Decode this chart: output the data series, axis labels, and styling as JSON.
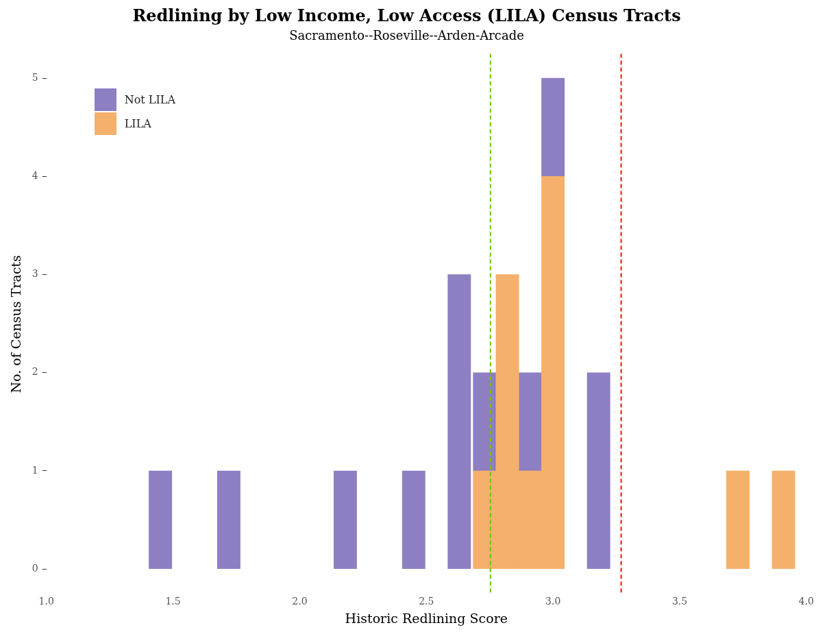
{
  "chart_data": {
    "type": "bar",
    "title": "Redlining by Low Income, Low Access (LILA) Census Tracts",
    "subtitle": "Sacramento--Roseville--Arden-Arcade",
    "xlabel": "Historic Redlining Score",
    "ylabel": "No. of Census Tracts",
    "x": [
      1.45,
      1.72,
      2.18,
      2.45,
      2.63,
      2.73,
      2.82,
      2.91,
      3.0,
      3.18,
      3.73,
      3.91
    ],
    "stacked": true,
    "series": [
      {
        "name": "LILA",
        "color": "#f5b06b",
        "values": [
          0,
          0,
          0,
          0,
          0,
          1,
          3,
          1,
          4,
          0,
          1,
          1
        ]
      },
      {
        "name": "Not LILA",
        "color": "#8e7fc2",
        "values": [
          1,
          1,
          1,
          1,
          3,
          1,
          0,
          1,
          1,
          2,
          0,
          0
        ]
      }
    ],
    "xlim": [
      1.0,
      4.0
    ],
    "xticks": [
      {
        "value": 1,
        "label": "1.0"
      },
      {
        "value": 1.5,
        "label": "1.5"
      },
      {
        "value": 2,
        "label": "2.0"
      },
      {
        "value": 2.5,
        "label": "2.5"
      },
      {
        "value": 3,
        "label": "3.0"
      },
      {
        "value": 3.5,
        "label": "3.5"
      },
      {
        "value": 4,
        "label": "4.0"
      }
    ],
    "ylim": [
      -0.26,
      5.25
    ],
    "yticks": [
      0,
      1,
      2,
      3,
      4,
      5
    ],
    "ref_lines": [
      {
        "axis": "x",
        "value": 2.753,
        "color": "#66cc00",
        "line_style": "dashed"
      },
      {
        "axis": "x",
        "value": 3.269,
        "color": "#ee1111",
        "line_style": "dashed"
      }
    ],
    "grid": false,
    "legend": "top left"
  }
}
